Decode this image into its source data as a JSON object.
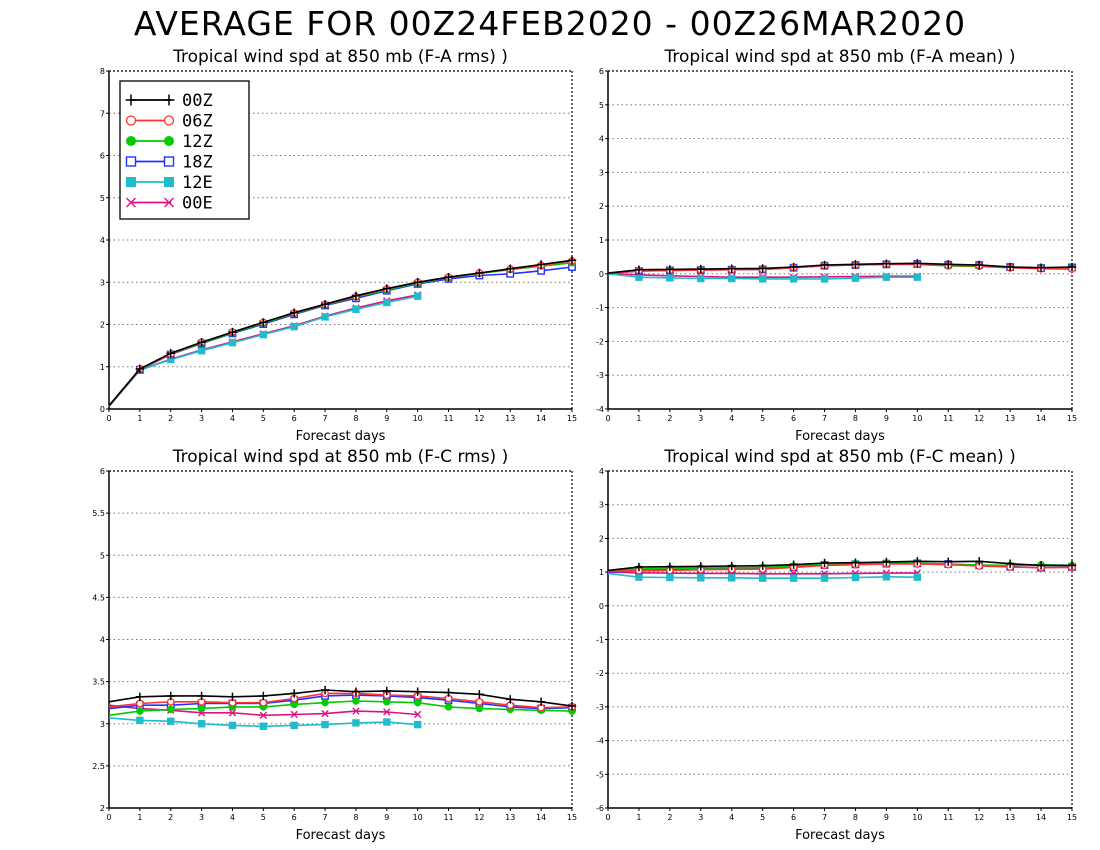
{
  "page_title": "AVERAGE FOR 00Z24FEB2020 - 00Z26MAR2020",
  "legend": [
    {
      "label": "00Z",
      "color": "#000000",
      "marker": "plus"
    },
    {
      "label": "06Z",
      "color": "#ff3333",
      "marker": "circle-open"
    },
    {
      "label": "12Z",
      "color": "#00cc00",
      "marker": "circle-filled"
    },
    {
      "label": "18Z",
      "color": "#2233ff",
      "marker": "square-open"
    },
    {
      "label": "12E",
      "color": "#22bbcc",
      "marker": "square-filled"
    },
    {
      "label": "00E",
      "color": "#e01080",
      "marker": "x"
    }
  ],
  "chart_data": [
    {
      "type": "line",
      "title": "Tropical wind spd at 850 mb (F-A rms) )",
      "xlabel": "Forecast days",
      "xlim": [
        0,
        15
      ],
      "ylim": [
        0,
        8
      ],
      "xticks": [
        0,
        1,
        2,
        3,
        4,
        5,
        6,
        7,
        8,
        9,
        10,
        11,
        12,
        13,
        14,
        15
      ],
      "yticks": [
        "0",
        "1",
        "2",
        "3",
        "4",
        "5",
        "6",
        "7",
        "8"
      ],
      "grid": true,
      "legend_position": "top-left",
      "x": [
        0,
        1,
        2,
        3,
        4,
        5,
        6,
        7,
        8,
        9,
        10,
        11,
        12,
        13,
        14,
        15
      ],
      "series": [
        {
          "name": "00Z",
          "values": [
            0.08,
            0.95,
            1.32,
            1.58,
            1.82,
            2.05,
            2.28,
            2.48,
            2.68,
            2.85,
            3.0,
            3.12,
            3.22,
            3.32,
            3.42,
            3.52
          ]
        },
        {
          "name": "06Z",
          "values": [
            0.07,
            0.95,
            1.3,
            1.58,
            1.82,
            2.05,
            2.27,
            2.47,
            2.66,
            2.84,
            3.0,
            3.12,
            3.22,
            3.31,
            3.4,
            3.5
          ]
        },
        {
          "name": "12Z",
          "values": [
            0.08,
            0.94,
            1.3,
            1.56,
            1.8,
            2.03,
            2.26,
            2.46,
            2.65,
            2.82,
            2.98,
            3.11,
            3.21,
            3.3,
            3.38,
            3.46
          ]
        },
        {
          "name": "18Z",
          "values": [
            0.07,
            0.93,
            1.29,
            1.55,
            1.79,
            2.01,
            2.24,
            2.45,
            2.62,
            2.8,
            2.96,
            3.08,
            3.16,
            3.2,
            3.27,
            3.36
          ]
        },
        {
          "name": "12E",
          "values": [
            0.06,
            0.92,
            1.17,
            1.38,
            1.57,
            1.76,
            1.95,
            2.18,
            2.36,
            2.52,
            2.67,
            null,
            null,
            null,
            null,
            null
          ]
        },
        {
          "name": "00E",
          "values": [
            0.06,
            0.92,
            1.18,
            1.4,
            1.59,
            1.78,
            1.97,
            2.2,
            2.39,
            2.56,
            2.7,
            null,
            null,
            null,
            null,
            null
          ]
        }
      ]
    },
    {
      "type": "line",
      "title": "Tropical wind spd at 850 mb (F-A mean) )",
      "xlabel": "Forecast days",
      "xlim": [
        0,
        15
      ],
      "ylim": [
        -4,
        6
      ],
      "xticks": [
        0,
        1,
        2,
        3,
        4,
        5,
        6,
        7,
        8,
        9,
        10,
        11,
        12,
        13,
        14,
        15
      ],
      "yticks": [
        "-4",
        "-3",
        "-2",
        "-1",
        "0",
        "1",
        "2",
        "3",
        "4",
        "5",
        "6"
      ],
      "grid": true,
      "x": [
        0,
        1,
        2,
        3,
        4,
        5,
        6,
        7,
        8,
        9,
        10,
        11,
        12,
        13,
        14,
        15
      ],
      "series": [
        {
          "name": "00Z",
          "values": [
            0.02,
            0.12,
            0.13,
            0.14,
            0.15,
            0.16,
            0.2,
            0.26,
            0.28,
            0.3,
            0.31,
            0.28,
            0.26,
            0.2,
            0.18,
            0.2
          ]
        },
        {
          "name": "06Z",
          "values": [
            0.01,
            0.09,
            0.1,
            0.11,
            0.12,
            0.13,
            0.18,
            0.24,
            0.26,
            0.28,
            0.28,
            0.25,
            0.24,
            0.18,
            0.15,
            0.14
          ]
        },
        {
          "name": "12Z",
          "values": [
            0.02,
            0.1,
            0.11,
            0.12,
            0.13,
            0.14,
            0.19,
            0.25,
            0.26,
            0.28,
            0.28,
            0.23,
            0.22,
            0.18,
            0.17,
            0.18
          ]
        },
        {
          "name": "18Z",
          "values": [
            0.01,
            0.08,
            0.1,
            0.11,
            0.12,
            0.13,
            0.18,
            0.24,
            0.26,
            0.28,
            0.29,
            0.27,
            0.26,
            0.2,
            0.17,
            0.19
          ]
        },
        {
          "name": "12E",
          "values": [
            0.0,
            -0.1,
            -0.12,
            -0.14,
            -0.14,
            -0.15,
            -0.15,
            -0.15,
            -0.13,
            -0.1,
            -0.1,
            null,
            null,
            null,
            null,
            null
          ]
        },
        {
          "name": "00E",
          "values": [
            0.0,
            -0.03,
            -0.06,
            -0.08,
            -0.1,
            -0.1,
            -0.1,
            -0.09,
            -0.08,
            -0.07,
            -0.07,
            null,
            null,
            null,
            null,
            null
          ]
        }
      ]
    },
    {
      "type": "line",
      "title": "Tropical wind spd at 850 mb (F-C rms) )",
      "xlabel": "Forecast days",
      "xlim": [
        0,
        15
      ],
      "ylim": [
        2,
        6
      ],
      "xticks": [
        0,
        1,
        2,
        3,
        4,
        5,
        6,
        7,
        8,
        9,
        10,
        11,
        12,
        13,
        14,
        15
      ],
      "yticks": [
        "2",
        "2.5",
        "3",
        "3.5",
        "4",
        "4.5",
        "5",
        "5.5",
        "6"
      ],
      "grid": true,
      "x": [
        0,
        1,
        2,
        3,
        4,
        5,
        6,
        7,
        8,
        9,
        10,
        11,
        12,
        13,
        14,
        15
      ],
      "series": [
        {
          "name": "00Z",
          "values": [
            3.26,
            3.32,
            3.33,
            3.33,
            3.32,
            3.33,
            3.36,
            3.4,
            3.38,
            3.39,
            3.38,
            3.37,
            3.35,
            3.29,
            3.26,
            3.21
          ]
        },
        {
          "name": "06Z",
          "values": [
            3.2,
            3.24,
            3.26,
            3.26,
            3.25,
            3.25,
            3.3,
            3.36,
            3.36,
            3.34,
            3.33,
            3.3,
            3.26,
            3.22,
            3.19,
            3.2
          ]
        },
        {
          "name": "12Z",
          "values": [
            3.1,
            3.15,
            3.17,
            3.18,
            3.2,
            3.2,
            3.23,
            3.25,
            3.27,
            3.26,
            3.25,
            3.2,
            3.18,
            3.17,
            3.16,
            3.15
          ]
        },
        {
          "name": "18Z",
          "values": [
            3.18,
            3.22,
            3.22,
            3.24,
            3.24,
            3.24,
            3.28,
            3.33,
            3.34,
            3.33,
            3.31,
            3.28,
            3.24,
            3.2,
            3.18,
            3.19
          ]
        },
        {
          "name": "12E",
          "values": [
            3.07,
            3.04,
            3.03,
            3.0,
            2.98,
            2.97,
            2.98,
            2.99,
            3.01,
            3.02,
            2.99,
            null,
            null,
            null,
            null,
            null
          ]
        },
        {
          "name": "00E",
          "values": [
            3.22,
            3.18,
            3.16,
            3.13,
            3.13,
            3.1,
            3.11,
            3.12,
            3.15,
            3.14,
            3.11,
            null,
            null,
            null,
            null,
            null
          ]
        }
      ]
    },
    {
      "type": "line",
      "title": "Tropical wind spd at 850 mb (F-C mean) )",
      "xlabel": "Forecast days",
      "xlim": [
        0,
        15
      ],
      "ylim": [
        -6,
        4
      ],
      "xticks": [
        0,
        1,
        2,
        3,
        4,
        5,
        6,
        7,
        8,
        9,
        10,
        11,
        12,
        13,
        14,
        15
      ],
      "yticks": [
        "-6",
        "-5",
        "-4",
        "-3",
        "-2",
        "-1",
        "0",
        "1",
        "2",
        "3",
        "4"
      ],
      "grid": true,
      "x": [
        0,
        1,
        2,
        3,
        4,
        5,
        6,
        7,
        8,
        9,
        10,
        11,
        12,
        13,
        14,
        15
      ],
      "series": [
        {
          "name": "00Z",
          "values": [
            1.05,
            1.15,
            1.16,
            1.17,
            1.18,
            1.19,
            1.22,
            1.27,
            1.28,
            1.3,
            1.32,
            1.31,
            1.32,
            1.25,
            1.2,
            1.2
          ]
        },
        {
          "name": "06Z",
          "values": [
            1.02,
            1.04,
            1.05,
            1.07,
            1.08,
            1.09,
            1.14,
            1.2,
            1.22,
            1.24,
            1.24,
            1.22,
            1.18,
            1.15,
            1.13,
            1.14
          ]
        },
        {
          "name": "12Z",
          "values": [
            1.03,
            1.1,
            1.11,
            1.12,
            1.13,
            1.14,
            1.18,
            1.23,
            1.25,
            1.27,
            1.27,
            1.24,
            1.21,
            1.2,
            1.22,
            1.2
          ]
        },
        {
          "name": "18Z",
          "values": [
            1.0,
            1.05,
            1.07,
            1.08,
            1.1,
            1.11,
            1.15,
            1.21,
            1.23,
            1.25,
            1.26,
            1.24,
            1.2,
            1.16,
            1.13,
            1.15
          ]
        },
        {
          "name": "12E",
          "values": [
            0.96,
            0.85,
            0.84,
            0.83,
            0.83,
            0.82,
            0.82,
            0.82,
            0.84,
            0.86,
            0.85,
            null,
            null,
            null,
            null,
            null
          ]
        },
        {
          "name": "00E",
          "values": [
            1.0,
            0.98,
            0.97,
            0.96,
            0.96,
            0.95,
            0.95,
            0.95,
            0.96,
            0.97,
            0.97,
            null,
            null,
            null,
            null,
            null
          ]
        }
      ]
    }
  ]
}
